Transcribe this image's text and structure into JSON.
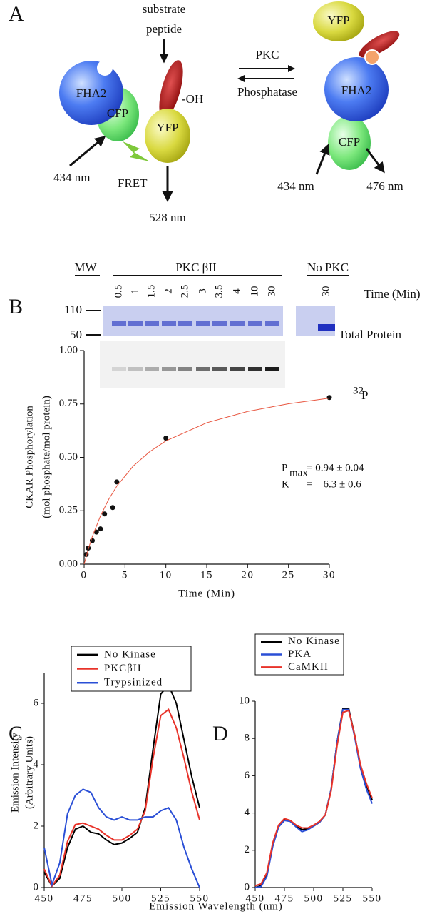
{
  "panel_labels": [
    "A",
    "B",
    "C",
    "D"
  ],
  "diagram": {
    "left": {
      "fha2": "FHA2",
      "cfp": "CFP",
      "yfp": "YFP",
      "substrate_1": "substrate",
      "substrate_2": "peptide",
      "oh": "-OH",
      "excitation": "434 nm",
      "fret": "FRET",
      "emission": "528 nm"
    },
    "reaction": {
      "forward": "PKC",
      "reverse": "Phosphatase"
    },
    "right": {
      "yfp": "YFP",
      "fha2": "FHA2",
      "cfp": "CFP",
      "excitation": "434 nm",
      "emission": "476 nm"
    }
  },
  "gel": {
    "mw": "MW",
    "enzyme": "PKC βII",
    "control": "No PKC",
    "time_label": "Time (Min)",
    "lanes": [
      "0.5",
      "1",
      "1.5",
      "2",
      "2.5",
      "3",
      "3.5",
      "4",
      "10",
      "30"
    ],
    "control_lanes": [
      "30"
    ],
    "markers": [
      "110",
      "50"
    ],
    "total_protein": "Total Protein",
    "radio_sup": "32",
    "radio": "P"
  },
  "chart_data": [
    {
      "type": "scatter",
      "y_label": [
        "CKAR Phosphorylation",
        "(mol phosphate/mol protein)"
      ],
      "x_label": "Time (Min)",
      "xlim": [
        0,
        30
      ],
      "ylim": [
        0,
        1
      ],
      "xticks": [
        0,
        5,
        10,
        15,
        20,
        25,
        30
      ],
      "yticks": [
        {
          "value": 0,
          "label": "0.00"
        },
        {
          "value": 0.25,
          "label": "0.25"
        },
        {
          "value": 0.5,
          "label": "0.50"
        },
        {
          "value": 0.75,
          "label": "0.75"
        },
        {
          "value": 1,
          "label": "1.00"
        }
      ],
      "series": [
        {
          "style": "markers",
          "color": "#111111",
          "x": [
            0.25,
            0.5,
            1,
            1.5,
            2,
            2.5,
            3.5,
            4,
            10,
            30
          ],
          "values": [
            0.045,
            0.075,
            0.11,
            0.15,
            0.165,
            0.235,
            0.265,
            0.385,
            0.59,
            0.78
          ]
        },
        {
          "style": "line",
          "color": "#e8553f",
          "x": [
            0,
            0.5,
            1,
            2,
            3,
            4,
            6,
            8,
            10,
            15,
            20,
            25,
            30
          ],
          "values": [
            0,
            0.069,
            0.129,
            0.226,
            0.303,
            0.365,
            0.459,
            0.526,
            0.577,
            0.662,
            0.715,
            0.751,
            0.777
          ]
        }
      ],
      "annotations": {
        "pmax_symbol": "P",
        "pmax_subscript": "max",
        "pmax_value": "= 0.94 ± 0.04",
        "k_symbol": "K",
        "k_value": "=    6.3 ± 0.6"
      }
    },
    {
      "type": "line",
      "y_label": [
        "Emission Intensity",
        "(Arbitrary  Units)"
      ],
      "x_label": "Emission Wavelength (nm)",
      "x": [
        450,
        455,
        460,
        465,
        470,
        475,
        480,
        485,
        490,
        495,
        500,
        505,
        510,
        515,
        520,
        525,
        530,
        535,
        540,
        545,
        550
      ],
      "xlim": [
        450,
        550
      ],
      "ylim": [
        0,
        7
      ],
      "xticks": [
        450,
        475,
        500,
        525,
        550
      ],
      "yticks": [
        0,
        2,
        4,
        6
      ],
      "series": [
        {
          "name": "No Kinase",
          "color": "#000000",
          "values": [
            0.5,
            0.05,
            0.3,
            1.3,
            1.9,
            2.0,
            1.8,
            1.75,
            1.55,
            1.4,
            1.45,
            1.6,
            1.8,
            2.6,
            4.5,
            6.3,
            6.6,
            6.0,
            4.8,
            3.6,
            2.6
          ]
        },
        {
          "name": "PKCβII",
          "color": "#e8332a",
          "values": [
            0.6,
            0.05,
            0.4,
            1.5,
            2.05,
            2.1,
            2.0,
            1.9,
            1.7,
            1.55,
            1.55,
            1.7,
            1.9,
            2.5,
            4.2,
            5.6,
            5.8,
            5.2,
            4.2,
            3.1,
            2.2
          ]
        },
        {
          "name": "Trypsinized",
          "color": "#2a4fd6",
          "values": [
            1.3,
            0.1,
            0.8,
            2.4,
            3.0,
            3.2,
            3.1,
            2.6,
            2.3,
            2.2,
            2.3,
            2.2,
            2.2,
            2.3,
            2.3,
            2.5,
            2.6,
            2.2,
            1.3,
            0.6,
            0
          ]
        }
      ]
    },
    {
      "type": "line",
      "x": [
        450,
        455,
        460,
        465,
        470,
        475,
        480,
        485,
        490,
        495,
        500,
        505,
        510,
        515,
        520,
        525,
        530,
        535,
        540,
        545,
        550
      ],
      "xlim": [
        450,
        550
      ],
      "ylim": [
        0,
        10
      ],
      "xticks": [
        450,
        475,
        500,
        525,
        550
      ],
      "yticks": [
        0,
        2,
        4,
        6,
        8,
        10
      ],
      "series": [
        {
          "name": "No Kinase",
          "color": "#000000",
          "values": [
            0,
            0.1,
            0.7,
            2.3,
            3.3,
            3.65,
            3.6,
            3.3,
            3.1,
            3.15,
            3.3,
            3.5,
            3.9,
            5.3,
            7.8,
            9.6,
            9.6,
            8.2,
            6.5,
            5.5,
            4.7
          ]
        },
        {
          "name": "PKA",
          "color": "#2a4fd6",
          "values": [
            0,
            0.05,
            0.6,
            2.2,
            3.25,
            3.6,
            3.55,
            3.25,
            3.0,
            3.1,
            3.3,
            3.5,
            3.9,
            5.3,
            7.8,
            9.55,
            9.55,
            8.1,
            6.4,
            5.3,
            4.5
          ]
        },
        {
          "name": "CaMKII",
          "color": "#e8332a",
          "values": [
            0.1,
            0.2,
            0.8,
            2.4,
            3.35,
            3.7,
            3.6,
            3.35,
            3.2,
            3.2,
            3.35,
            3.55,
            3.9,
            5.2,
            7.6,
            9.4,
            9.5,
            8.2,
            6.6,
            5.6,
            4.8
          ]
        }
      ]
    }
  ]
}
